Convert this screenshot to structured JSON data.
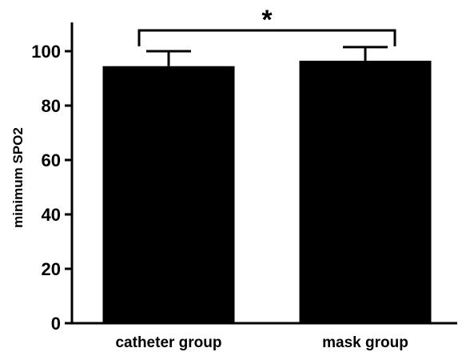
{
  "chart_data": {
    "type": "bar",
    "categories": [
      "catheter group",
      "mask group"
    ],
    "values": [
      94.5,
      96.5
    ],
    "error_upper": [
      100,
      101.5
    ],
    "ylabel": "minimum SPO2",
    "xlabel": "",
    "ylim": [
      0,
      110
    ],
    "yticks": [
      0,
      20,
      40,
      60,
      80,
      100
    ],
    "grid": false,
    "significance": {
      "between": [
        "catheter group",
        "mask group"
      ],
      "label": "*"
    },
    "colors": {
      "bar": "#000000",
      "axis": "#000000"
    }
  }
}
